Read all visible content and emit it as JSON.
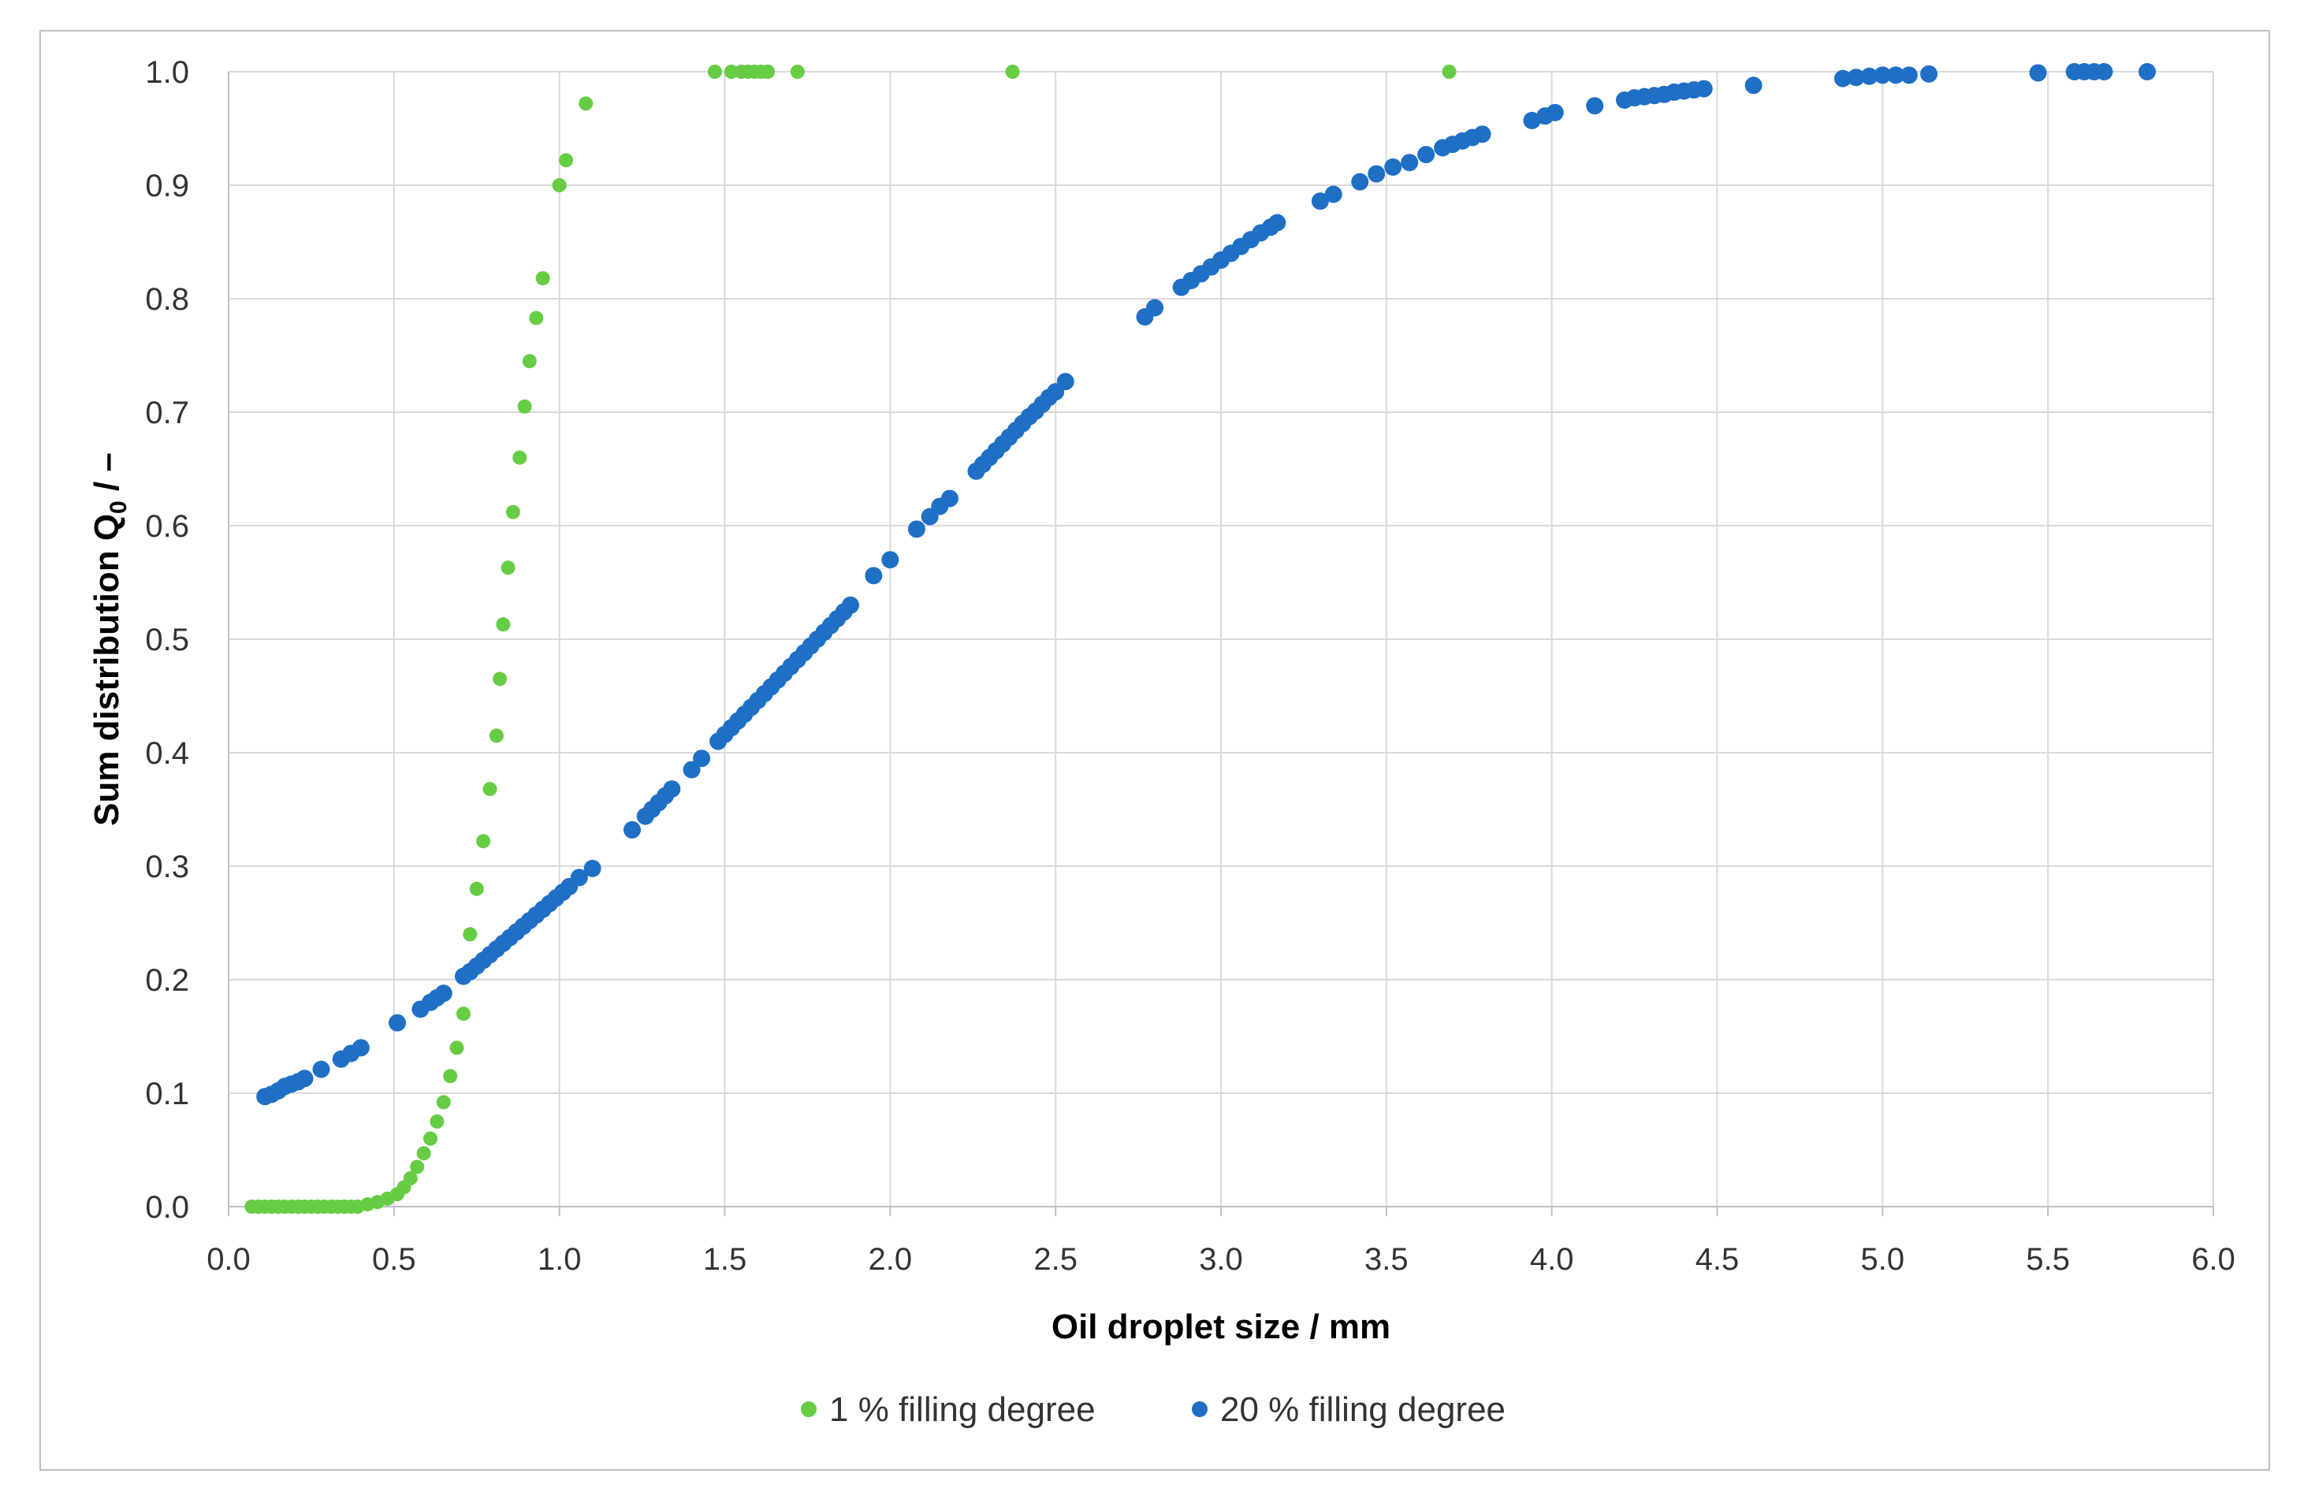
{
  "chart_data": {
    "type": "scatter",
    "xlabel": "Oil droplet size / mm",
    "ylabel_main": "Sum distribution Q",
    "ylabel_sub": "0",
    "ylabel_tail": " / –",
    "xlim": [
      0,
      6
    ],
    "ylim": [
      0,
      1
    ],
    "xticks": [
      "0.0",
      "0.5",
      "1.0",
      "1.5",
      "2.0",
      "2.5",
      "3.0",
      "3.5",
      "4.0",
      "4.5",
      "5.0",
      "5.5",
      "6.0"
    ],
    "yticks": [
      "0.0",
      "0.1",
      "0.2",
      "0.3",
      "0.4",
      "0.5",
      "0.6",
      "0.7",
      "0.8",
      "0.9",
      "1.0"
    ],
    "grid": true,
    "legend_position": "bottom",
    "colors": {
      "series1": "#66cc44",
      "series2": "#1f6fc5",
      "grid": "#d9d9d9",
      "axis": "#bfbfbf"
    },
    "series": [
      {
        "name": "1 % filling degree",
        "points": [
          [
            0.07,
            0.0
          ],
          [
            0.09,
            0.0
          ],
          [
            0.11,
            0.0
          ],
          [
            0.13,
            0.0
          ],
          [
            0.15,
            0.0
          ],
          [
            0.17,
            0.0
          ],
          [
            0.19,
            0.0
          ],
          [
            0.21,
            0.0
          ],
          [
            0.23,
            0.0
          ],
          [
            0.25,
            0.0
          ],
          [
            0.27,
            0.0
          ],
          [
            0.29,
            0.0
          ],
          [
            0.31,
            0.0
          ],
          [
            0.33,
            0.0
          ],
          [
            0.35,
            0.0
          ],
          [
            0.37,
            0.0
          ],
          [
            0.39,
            0.0
          ],
          [
            0.42,
            0.002
          ],
          [
            0.45,
            0.004
          ],
          [
            0.48,
            0.007
          ],
          [
            0.51,
            0.011
          ],
          [
            0.53,
            0.017
          ],
          [
            0.55,
            0.025
          ],
          [
            0.57,
            0.035
          ],
          [
            0.59,
            0.047
          ],
          [
            0.61,
            0.06
          ],
          [
            0.63,
            0.075
          ],
          [
            0.65,
            0.092
          ],
          [
            0.67,
            0.115
          ],
          [
            0.69,
            0.14
          ],
          [
            0.71,
            0.17
          ],
          [
            0.73,
            0.24
          ],
          [
            0.75,
            0.28
          ],
          [
            0.77,
            0.322
          ],
          [
            0.79,
            0.368
          ],
          [
            0.81,
            0.415
          ],
          [
            0.82,
            0.465
          ],
          [
            0.83,
            0.513
          ],
          [
            0.845,
            0.563
          ],
          [
            0.86,
            0.612
          ],
          [
            0.88,
            0.66
          ],
          [
            0.895,
            0.705
          ],
          [
            0.91,
            0.745
          ],
          [
            0.93,
            0.783
          ],
          [
            0.95,
            0.818
          ],
          [
            1.0,
            0.9
          ],
          [
            1.02,
            0.922
          ],
          [
            1.08,
            0.972
          ],
          [
            1.47,
            1.0
          ],
          [
            1.52,
            1.0
          ],
          [
            1.55,
            1.0
          ],
          [
            1.57,
            1.0
          ],
          [
            1.59,
            1.0
          ],
          [
            1.61,
            1.0
          ],
          [
            1.63,
            1.0
          ],
          [
            1.72,
            1.0
          ],
          [
            2.37,
            1.0
          ],
          [
            3.69,
            1.0
          ]
        ]
      },
      {
        "name": "20 % filling degree",
        "points": [
          [
            0.11,
            0.097
          ],
          [
            0.13,
            0.099
          ],
          [
            0.15,
            0.102
          ],
          [
            0.17,
            0.106
          ],
          [
            0.19,
            0.108
          ],
          [
            0.21,
            0.11
          ],
          [
            0.23,
            0.113
          ],
          [
            0.28,
            0.121
          ],
          [
            0.34,
            0.13
          ],
          [
            0.37,
            0.135
          ],
          [
            0.4,
            0.14
          ],
          [
            0.51,
            0.162
          ],
          [
            0.58,
            0.174
          ],
          [
            0.61,
            0.18
          ],
          [
            0.63,
            0.184
          ],
          [
            0.65,
            0.188
          ],
          [
            0.71,
            0.203
          ],
          [
            0.73,
            0.207
          ],
          [
            0.75,
            0.212
          ],
          [
            0.77,
            0.217
          ],
          [
            0.79,
            0.222
          ],
          [
            0.81,
            0.227
          ],
          [
            0.83,
            0.232
          ],
          [
            0.85,
            0.237
          ],
          [
            0.87,
            0.242
          ],
          [
            0.89,
            0.247
          ],
          [
            0.91,
            0.252
          ],
          [
            0.93,
            0.257
          ],
          [
            0.95,
            0.262
          ],
          [
            0.97,
            0.267
          ],
          [
            0.99,
            0.272
          ],
          [
            1.01,
            0.277
          ],
          [
            1.03,
            0.282
          ],
          [
            1.06,
            0.29
          ],
          [
            1.1,
            0.298
          ],
          [
            1.22,
            0.332
          ],
          [
            1.26,
            0.344
          ],
          [
            1.28,
            0.35
          ],
          [
            1.3,
            0.356
          ],
          [
            1.32,
            0.362
          ],
          [
            1.34,
            0.368
          ],
          [
            1.4,
            0.385
          ],
          [
            1.43,
            0.395
          ],
          [
            1.48,
            0.41
          ],
          [
            1.5,
            0.416
          ],
          [
            1.52,
            0.422
          ],
          [
            1.54,
            0.428
          ],
          [
            1.56,
            0.434
          ],
          [
            1.58,
            0.44
          ],
          [
            1.6,
            0.446
          ],
          [
            1.62,
            0.452
          ],
          [
            1.64,
            0.458
          ],
          [
            1.66,
            0.464
          ],
          [
            1.68,
            0.47
          ],
          [
            1.7,
            0.476
          ],
          [
            1.72,
            0.482
          ],
          [
            1.74,
            0.488
          ],
          [
            1.76,
            0.494
          ],
          [
            1.78,
            0.5
          ],
          [
            1.8,
            0.506
          ],
          [
            1.82,
            0.512
          ],
          [
            1.84,
            0.518
          ],
          [
            1.86,
            0.524
          ],
          [
            1.88,
            0.53
          ],
          [
            1.95,
            0.556
          ],
          [
            2.0,
            0.57
          ],
          [
            2.08,
            0.597
          ],
          [
            2.12,
            0.608
          ],
          [
            2.15,
            0.617
          ],
          [
            2.18,
            0.624
          ],
          [
            2.26,
            0.648
          ],
          [
            2.28,
            0.654
          ],
          [
            2.3,
            0.66
          ],
          [
            2.32,
            0.666
          ],
          [
            2.34,
            0.672
          ],
          [
            2.36,
            0.678
          ],
          [
            2.38,
            0.684
          ],
          [
            2.4,
            0.69
          ],
          [
            2.42,
            0.696
          ],
          [
            2.44,
            0.701
          ],
          [
            2.46,
            0.707
          ],
          [
            2.48,
            0.713
          ],
          [
            2.5,
            0.718
          ],
          [
            2.53,
            0.727
          ],
          [
            2.77,
            0.784
          ],
          [
            2.8,
            0.792
          ],
          [
            2.88,
            0.81
          ],
          [
            2.91,
            0.816
          ],
          [
            2.94,
            0.822
          ],
          [
            2.97,
            0.828
          ],
          [
            3.0,
            0.834
          ],
          [
            3.03,
            0.84
          ],
          [
            3.06,
            0.846
          ],
          [
            3.09,
            0.852
          ],
          [
            3.12,
            0.858
          ],
          [
            3.15,
            0.863
          ],
          [
            3.17,
            0.867
          ],
          [
            3.3,
            0.886
          ],
          [
            3.34,
            0.892
          ],
          [
            3.42,
            0.903
          ],
          [
            3.47,
            0.91
          ],
          [
            3.52,
            0.916
          ],
          [
            3.57,
            0.92
          ],
          [
            3.62,
            0.927
          ],
          [
            3.67,
            0.933
          ],
          [
            3.7,
            0.936
          ],
          [
            3.73,
            0.939
          ],
          [
            3.76,
            0.942
          ],
          [
            3.79,
            0.945
          ],
          [
            3.94,
            0.957
          ],
          [
            3.98,
            0.961
          ],
          [
            4.01,
            0.964
          ],
          [
            4.13,
            0.97
          ],
          [
            4.22,
            0.975
          ],
          [
            4.25,
            0.977
          ],
          [
            4.28,
            0.978
          ],
          [
            4.31,
            0.979
          ],
          [
            4.34,
            0.98
          ],
          [
            4.37,
            0.982
          ],
          [
            4.4,
            0.983
          ],
          [
            4.43,
            0.984
          ],
          [
            4.46,
            0.985
          ],
          [
            4.61,
            0.988
          ],
          [
            4.88,
            0.994
          ],
          [
            4.92,
            0.995
          ],
          [
            4.96,
            0.996
          ],
          [
            5.0,
            0.997
          ],
          [
            5.04,
            0.997
          ],
          [
            5.08,
            0.997
          ],
          [
            5.14,
            0.998
          ],
          [
            5.47,
            0.999
          ],
          [
            5.58,
            1.0
          ],
          [
            5.61,
            1.0
          ],
          [
            5.64,
            1.0
          ],
          [
            5.67,
            1.0
          ],
          [
            5.8,
            1.0
          ]
        ]
      }
    ]
  }
}
